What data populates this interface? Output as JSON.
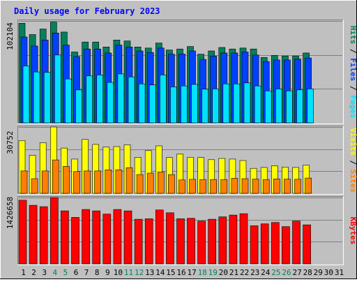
{
  "chart_data": {
    "title": "Daily usage for February 2023",
    "type": "bar",
    "days": [
      "1",
      "2",
      "3",
      "4",
      "5",
      "6",
      "7",
      "8",
      "9",
      "10",
      "11",
      "12",
      "13",
      "14",
      "15",
      "16",
      "17",
      "18",
      "19",
      "20",
      "21",
      "22",
      "23",
      "24",
      "25",
      "26",
      "27",
      "28",
      "29",
      "30",
      "31"
    ],
    "weekend_days": [
      "4",
      "5",
      "11",
      "12",
      "18",
      "19",
      "25",
      "26"
    ],
    "panels": [
      {
        "name": "hits-files-pages",
        "max_label": "102104",
        "ymax": 102104,
        "right_labels": [
          {
            "text": "Hits",
            "color": "#00805c"
          },
          {
            "text": " / ",
            "color": "#000000"
          },
          {
            "text": "Files",
            "color": "#0040ff"
          },
          {
            "text": " / ",
            "color": "#000000"
          },
          {
            "text": "Pages",
            "color": "#00e0ff"
          }
        ],
        "series": [
          {
            "name": "Hits",
            "color": "#00805c",
            "values": [
              99800,
              88500,
              94000,
              101000,
              91000,
              71000,
              81000,
              81000,
              76000,
              83000,
              82000,
              76000,
              75000,
              80000,
              73000,
              74000,
              76500,
              68800,
              72000,
              75500,
              74000,
              75000,
              74000,
              65500,
              67600,
              67000,
              67000,
              70000,
              0,
              0,
              0
            ]
          },
          {
            "name": "Files",
            "color": "#0040ff",
            "values": [
              86000,
              77000,
              83000,
              90000,
              78000,
              66500,
              74000,
              74000,
              70000,
              78000,
              76000,
              72000,
              70500,
              75000,
              68800,
              69000,
              72000,
              63600,
              67000,
              70000,
              70000,
              71000,
              68000,
              61500,
              63000,
              63000,
              64000,
              65000,
              0,
              0,
              0
            ]
          },
          {
            "name": "Pages",
            "color": "#00e0ff",
            "values": [
              57000,
              51000,
              50500,
              68000,
              44000,
              33000,
              47000,
              48000,
              40500,
              49000,
              46000,
              39000,
              38000,
              48000,
              36000,
              37000,
              38500,
              33700,
              34000,
              39000,
              39000,
              40000,
              37000,
              32000,
              34000,
              32000,
              33000,
              34000,
              0,
              0,
              0
            ]
          }
        ]
      },
      {
        "name": "visits-sites",
        "max_label": "30752",
        "ymax": 30752,
        "right_labels": [
          {
            "text": "Visits",
            "color": "#ffff00"
          },
          {
            "text": " / ",
            "color": "#000000"
          },
          {
            "text": "Sites",
            "color": "#ff8000"
          }
        ],
        "series": [
          {
            "name": "Visits",
            "color": "#ffff00",
            "values": [
              24500,
              17700,
              23500,
              30752,
              21000,
              15900,
              25000,
              22700,
              21500,
              21700,
              22500,
              16700,
              19800,
              22000,
              16600,
              18200,
              16700,
              16600,
              15600,
              16200,
              15900,
              15200,
              11600,
              12000,
              12800,
              12200,
              12000,
              13100,
              0,
              0,
              0
            ]
          },
          {
            "name": "Sites",
            "color": "#ff8000",
            "values": [
              10400,
              6800,
              10400,
              15500,
              12500,
              10100,
              10400,
              10400,
              10900,
              10900,
              11900,
              8700,
              9400,
              9900,
              8700,
              6200,
              6500,
              6400,
              6400,
              6400,
              7000,
              6800,
              6600,
              6400,
              6700,
              6600,
              6500,
              7100,
              0,
              0,
              0
            ]
          }
        ]
      },
      {
        "name": "kbytes",
        "max_label": "1426658",
        "ymax": 1426658,
        "right_labels": [
          {
            "text": "KBytes",
            "color": "#ff0000"
          }
        ],
        "series": [
          {
            "name": "KBytes",
            "color": "#ff0000",
            "values": [
              1370000,
              1260000,
              1230000,
              1426658,
              1140000,
              1000000,
              1170000,
              1140000,
              1070000,
              1170000,
              1140000,
              960000,
              970000,
              1160000,
              1100000,
              970000,
              980000,
              920000,
              960000,
              1010000,
              1050000,
              1080000,
              820000,
              860000,
              890000,
              800000,
              920000,
              840000,
              0,
              0,
              0
            ]
          }
        ]
      }
    ]
  }
}
